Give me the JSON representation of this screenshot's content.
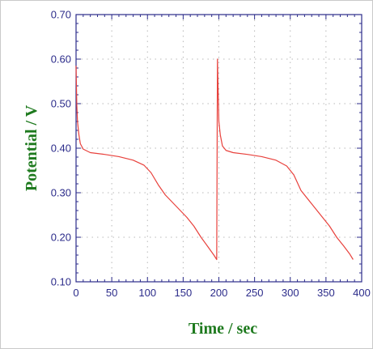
{
  "chart_data": {
    "type": "line",
    "xlabel": "Time / sec",
    "ylabel": "Potential / V",
    "xlim": [
      0,
      400
    ],
    "ylim": [
      0.1,
      0.7
    ],
    "x_ticks": [
      0,
      50,
      100,
      150,
      200,
      250,
      300,
      350,
      400
    ],
    "x_tick_labels": [
      "0",
      "50",
      "100",
      "150",
      "200",
      "250",
      "300",
      "350",
      "400"
    ],
    "y_ticks": [
      0.1,
      0.2,
      0.3,
      0.4,
      0.5,
      0.6,
      0.7
    ],
    "y_tick_labels": [
      "0.10",
      "0.20",
      "0.30",
      "0.40",
      "0.50",
      "0.60",
      "0.70"
    ],
    "grid": true,
    "colors": {
      "series": "#e8413c",
      "axis": "#2b2b8a",
      "axis_title": "#1e7a1e",
      "grid": "#b8b8b8"
    },
    "series": [
      {
        "color": "#e8413c",
        "points": [
          [
            0,
            0.585
          ],
          [
            1,
            0.5
          ],
          [
            2,
            0.46
          ],
          [
            4,
            0.43
          ],
          [
            6,
            0.41
          ],
          [
            10,
            0.398
          ],
          [
            20,
            0.39
          ],
          [
            40,
            0.386
          ],
          [
            60,
            0.381
          ],
          [
            80,
            0.373
          ],
          [
            95,
            0.362
          ],
          [
            105,
            0.345
          ],
          [
            115,
            0.318
          ],
          [
            125,
            0.295
          ],
          [
            140,
            0.27
          ],
          [
            155,
            0.245
          ],
          [
            165,
            0.225
          ],
          [
            175,
            0.2
          ],
          [
            185,
            0.178
          ],
          [
            193,
            0.16
          ],
          [
            197,
            0.15
          ],
          [
            198,
            0.6
          ],
          [
            199,
            0.53
          ],
          [
            200,
            0.46
          ],
          [
            202,
            0.43
          ],
          [
            205,
            0.405
          ],
          [
            210,
            0.395
          ],
          [
            220,
            0.39
          ],
          [
            240,
            0.386
          ],
          [
            260,
            0.381
          ],
          [
            280,
            0.373
          ],
          [
            295,
            0.36
          ],
          [
            305,
            0.34
          ],
          [
            315,
            0.305
          ],
          [
            330,
            0.275
          ],
          [
            345,
            0.245
          ],
          [
            355,
            0.225
          ],
          [
            365,
            0.2
          ],
          [
            375,
            0.18
          ],
          [
            383,
            0.163
          ],
          [
            388,
            0.15
          ]
        ]
      }
    ]
  }
}
